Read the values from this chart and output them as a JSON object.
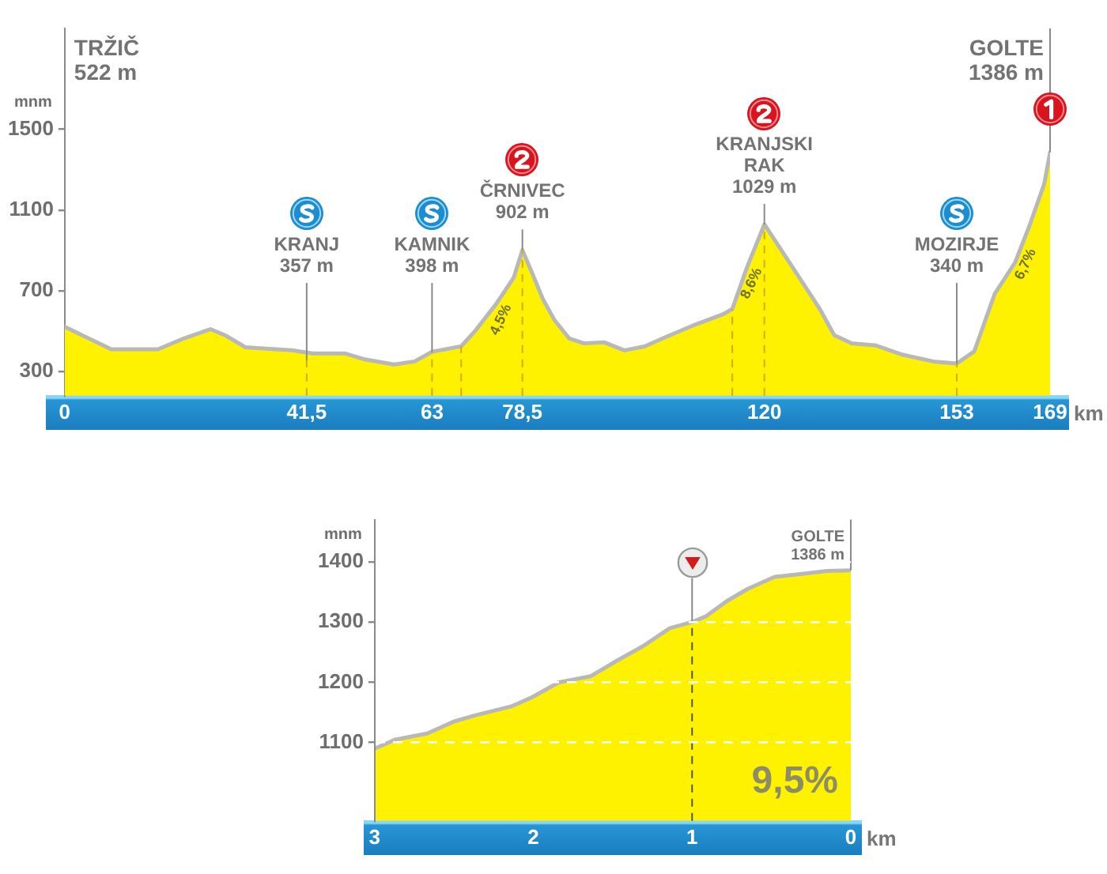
{
  "chart_data": [
    {
      "type": "area",
      "xlabel": "km",
      "ylabel": "mnm",
      "x": [
        0,
        3,
        8,
        16,
        20.5,
        25,
        27.5,
        31,
        39,
        42.5,
        48,
        51.5,
        56.5,
        60,
        63,
        68,
        70.5,
        74,
        77,
        78.5,
        80,
        82,
        84,
        86.5,
        89,
        92.5,
        96,
        99.5,
        103,
        107.5,
        113,
        114.5,
        117,
        120,
        122.5,
        126,
        129.5,
        132,
        135,
        139,
        143.5,
        149,
        153,
        156,
        159.5,
        163,
        165.5,
        168,
        169
      ],
      "series": [
        {
          "color": "#fff200",
          "values": [
            522,
            480,
            410,
            410,
            465,
            510,
            480,
            420,
            405,
            390,
            390,
            360,
            335,
            350,
            398,
            425,
            505,
            635,
            765,
            902,
            800,
            660,
            555,
            465,
            440,
            445,
            405,
            425,
            470,
            525,
            585,
            610,
            815,
            1029,
            920,
            765,
            610,
            480,
            440,
            430,
            385,
            350,
            340,
            400,
            685,
            840,
            1025,
            1230,
            1386
          ]
        }
      ],
      "xlim": [
        0,
        169
      ],
      "xticks": [
        0,
        {
          "value": 41.5,
          "label": "41,5"
        },
        63,
        {
          "value": 78.5,
          "label": "78,5"
        },
        120,
        153,
        169
      ],
      "ylim": [
        180,
        2000
      ],
      "yticks": [
        300,
        700,
        1100,
        1500
      ],
      "grid": false,
      "annotations": [
        "TRŽIČ\n522 m",
        {
          "text": "KRANJ\n357 m",
          "x": 41.5,
          "y": 357
        },
        {
          "text": "KAMNIK\n398 m",
          "x": 63,
          "y": 398
        },
        {
          "text": "ČRNIVEC\n902 m",
          "x": 78.5,
          "y": 902
        },
        {
          "text": "KRANJSKI\nRAK\n1029 m",
          "x": 120,
          "y": 1029
        },
        {
          "text": "MOZIRJE\n340 m",
          "x": 153,
          "y": 340
        },
        {
          "text": "GOLTE\n1386 m",
          "x": 169,
          "y": 1386
        },
        {
          "text": "4,5%",
          "x": 74,
          "y": 635
        },
        {
          "text": "8,6%",
          "x": 117,
          "y": 815
        },
        {
          "text": "6,7%",
          "x": 164,
          "y": 910
        }
      ],
      "ref_lines": [
        {
          "axis": "x",
          "value": 41.5,
          "color": "#d4a900",
          "line_style": "dashed"
        },
        {
          "axis": "x",
          "value": 63,
          "color": "#d4a900",
          "line_style": "dashed"
        },
        {
          "axis": "x",
          "value": 68,
          "color": "#d4a900",
          "line_style": "dashed"
        },
        {
          "axis": "x",
          "value": 78.5,
          "color": "#d4a900",
          "line_style": "dashed"
        },
        {
          "axis": "x",
          "value": 114.5,
          "color": "#d4a900",
          "line_style": "dashed"
        },
        {
          "axis": "x",
          "value": 120,
          "color": "#d4a900",
          "line_style": "dashed"
        },
        {
          "axis": "x",
          "value": 153,
          "color": "#d4a900",
          "line_style": "dashed"
        }
      ]
    },
    {
      "type": "area",
      "xlabel": "km",
      "ylabel": "mnm",
      "x": [
        3,
        2.87,
        2.67,
        2.5,
        2.37,
        2.14,
        2.01,
        1.84,
        1.64,
        1.48,
        1.31,
        1.14,
        1,
        0.91,
        0.78,
        0.65,
        0.48,
        0.31,
        0.15,
        0
      ],
      "series": [
        {
          "color": "#fff200",
          "values": [
            1090,
            1105,
            1115,
            1135,
            1145,
            1160,
            1175,
            1200,
            1210,
            1235,
            1260,
            1290,
            1300,
            1310,
            1335,
            1355,
            1375,
            1380,
            1385,
            1386
          ]
        }
      ],
      "xlim": [
        3,
        0
      ],
      "xticks": [
        3,
        2,
        1,
        0
      ],
      "ylim": [
        970,
        1470
      ],
      "yticks": [
        1100,
        1200,
        1300,
        1400
      ],
      "grid": "y",
      "annotations": [
        {
          "text": "GOLTE\n1386 m",
          "x": 0,
          "y": 1386
        },
        "9,5%"
      ],
      "ref_lines": [
        {
          "axis": "x",
          "value": 1,
          "color": "#555555",
          "line_style": "dashed"
        }
      ]
    }
  ]
}
